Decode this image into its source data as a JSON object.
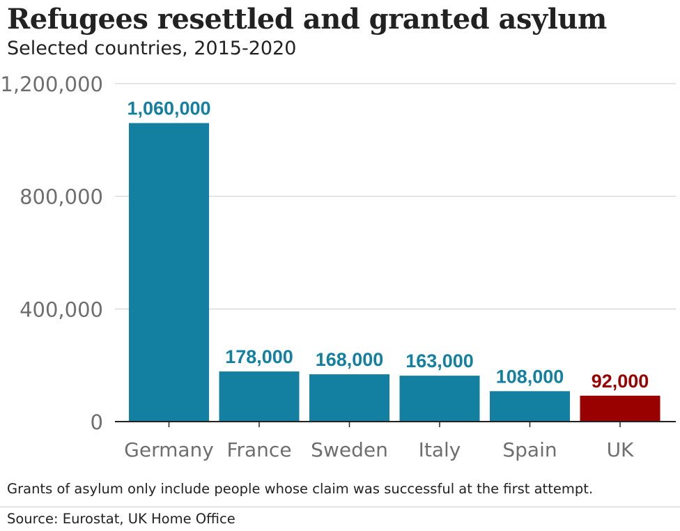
{
  "title": "Refugees resettled and granted asylum",
  "subtitle": "Selected countries, 2015-2020",
  "footnote": "Grants of asylum only include people whose claim was successful at the first attempt.",
  "source": "Source: Eurostat, UK Home Office",
  "colors": {
    "bar": "#1380a1",
    "highlight": "#990000",
    "grid": "#cbcbcb",
    "axis_text": "#6e6e6e",
    "baseline": "#222222"
  },
  "chart_data": {
    "type": "bar",
    "categories": [
      "Germany",
      "France",
      "Sweden",
      "Italy",
      "Spain",
      "UK"
    ],
    "values": [
      1060000,
      178000,
      168000,
      163000,
      108000,
      92000
    ],
    "value_labels": [
      "1,060,000",
      "178,000",
      "168,000",
      "163,000",
      "108,000",
      "92,000"
    ],
    "highlight": "UK",
    "yticks": [
      0,
      400000,
      800000,
      1200000
    ],
    "ytick_labels": [
      "0",
      "400,000",
      "800,000",
      "1,200,000"
    ],
    "ylim": [
      0,
      1200000
    ],
    "xlabel": "",
    "ylabel": "",
    "grid": true
  }
}
